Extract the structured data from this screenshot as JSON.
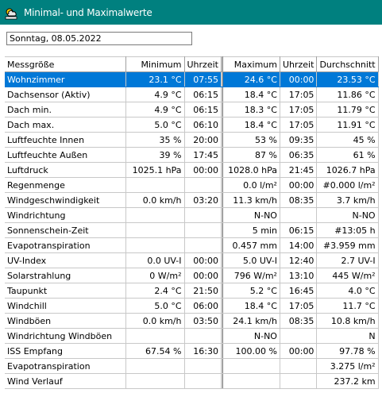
{
  "window": {
    "title": "Minimal- und Maximalwerte",
    "icon": "weather-app-icon"
  },
  "date_field": {
    "value": "Sonntag, 08.05.2022"
  },
  "table": {
    "headers": [
      "Messgröße",
      "Minimum",
      "Uhrzeit",
      "Maximum",
      "Uhrzeit",
      "Durchschnitt"
    ],
    "selected_row": 0,
    "rows": [
      [
        "Wohnzimmer",
        "23.1 °C",
        "07:55",
        "24.6 °C",
        "00:00",
        "23.53 °C"
      ],
      [
        "Dachsensor (Aktiv)",
        "4.9 °C",
        "06:15",
        "18.4 °C",
        "17:05",
        "11.86 °C"
      ],
      [
        "Dach min.",
        "4.9 °C",
        "06:15",
        "18.3 °C",
        "17:05",
        "11.79 °C"
      ],
      [
        "Dach max.",
        "5.0 °C",
        "06:10",
        "18.4 °C",
        "17:05",
        "11.91 °C"
      ],
      [
        "Luftfeuchte Innen",
        "35 %",
        "20:00",
        "53 %",
        "09:35",
        "45 %"
      ],
      [
        "Luftfeuchte Außen",
        "39 %",
        "17:45",
        "87 %",
        "06:35",
        "61 %"
      ],
      [
        "Luftdruck",
        "1025.1 hPa",
        "00:00",
        "1028.0 hPa",
        "21:45",
        "1026.7 hPa"
      ],
      [
        "Regenmenge",
        "",
        "",
        "0.0 l/m²",
        "00:00",
        "#0.000 l/m²"
      ],
      [
        "Windgeschwindigkeit",
        "0.0 km/h",
        "03:20",
        "11.3 km/h",
        "08:35",
        "3.7 km/h"
      ],
      [
        "Windrichtung",
        "",
        "",
        "N-NO",
        "",
        "N-NO"
      ],
      [
        "Sonnenschein-Zeit",
        "",
        "",
        "5 min",
        "06:15",
        "#13:05 h"
      ],
      [
        "Evapotranspiration",
        "",
        "",
        "0.457 mm",
        "14:00",
        "#3.959 mm"
      ],
      [
        "UV-Index",
        "0.0 UV-I",
        "00:00",
        "5.0 UV-I",
        "12:40",
        "2.7 UV-I"
      ],
      [
        "Solarstrahlung",
        "0 W/m²",
        "00:00",
        "796 W/m²",
        "13:10",
        "445 W/m²"
      ],
      [
        "Taupunkt",
        "2.4 °C",
        "21:50",
        "5.2 °C",
        "16:45",
        "4.0 °C"
      ],
      [
        "Windchill",
        "5.0 °C",
        "06:00",
        "18.4 °C",
        "17:05",
        "11.7 °C"
      ],
      [
        "Windböen",
        "0.0 km/h",
        "03:50",
        "24.1 km/h",
        "08:35",
        "10.8 km/h"
      ],
      [
        "Windrichtung Windböen",
        "",
        "",
        "N-NO",
        "",
        "N"
      ],
      [
        "ISS Empfang",
        "67.54 %",
        "16:30",
        "100.00 %",
        "00:00",
        "97.78 %"
      ],
      [
        "Evapotranspiration",
        "",
        "",
        "",
        "",
        "3.275 l/m²"
      ],
      [
        "Wind Verlauf",
        "",
        "",
        "",
        "",
        "237.2 km"
      ]
    ]
  }
}
